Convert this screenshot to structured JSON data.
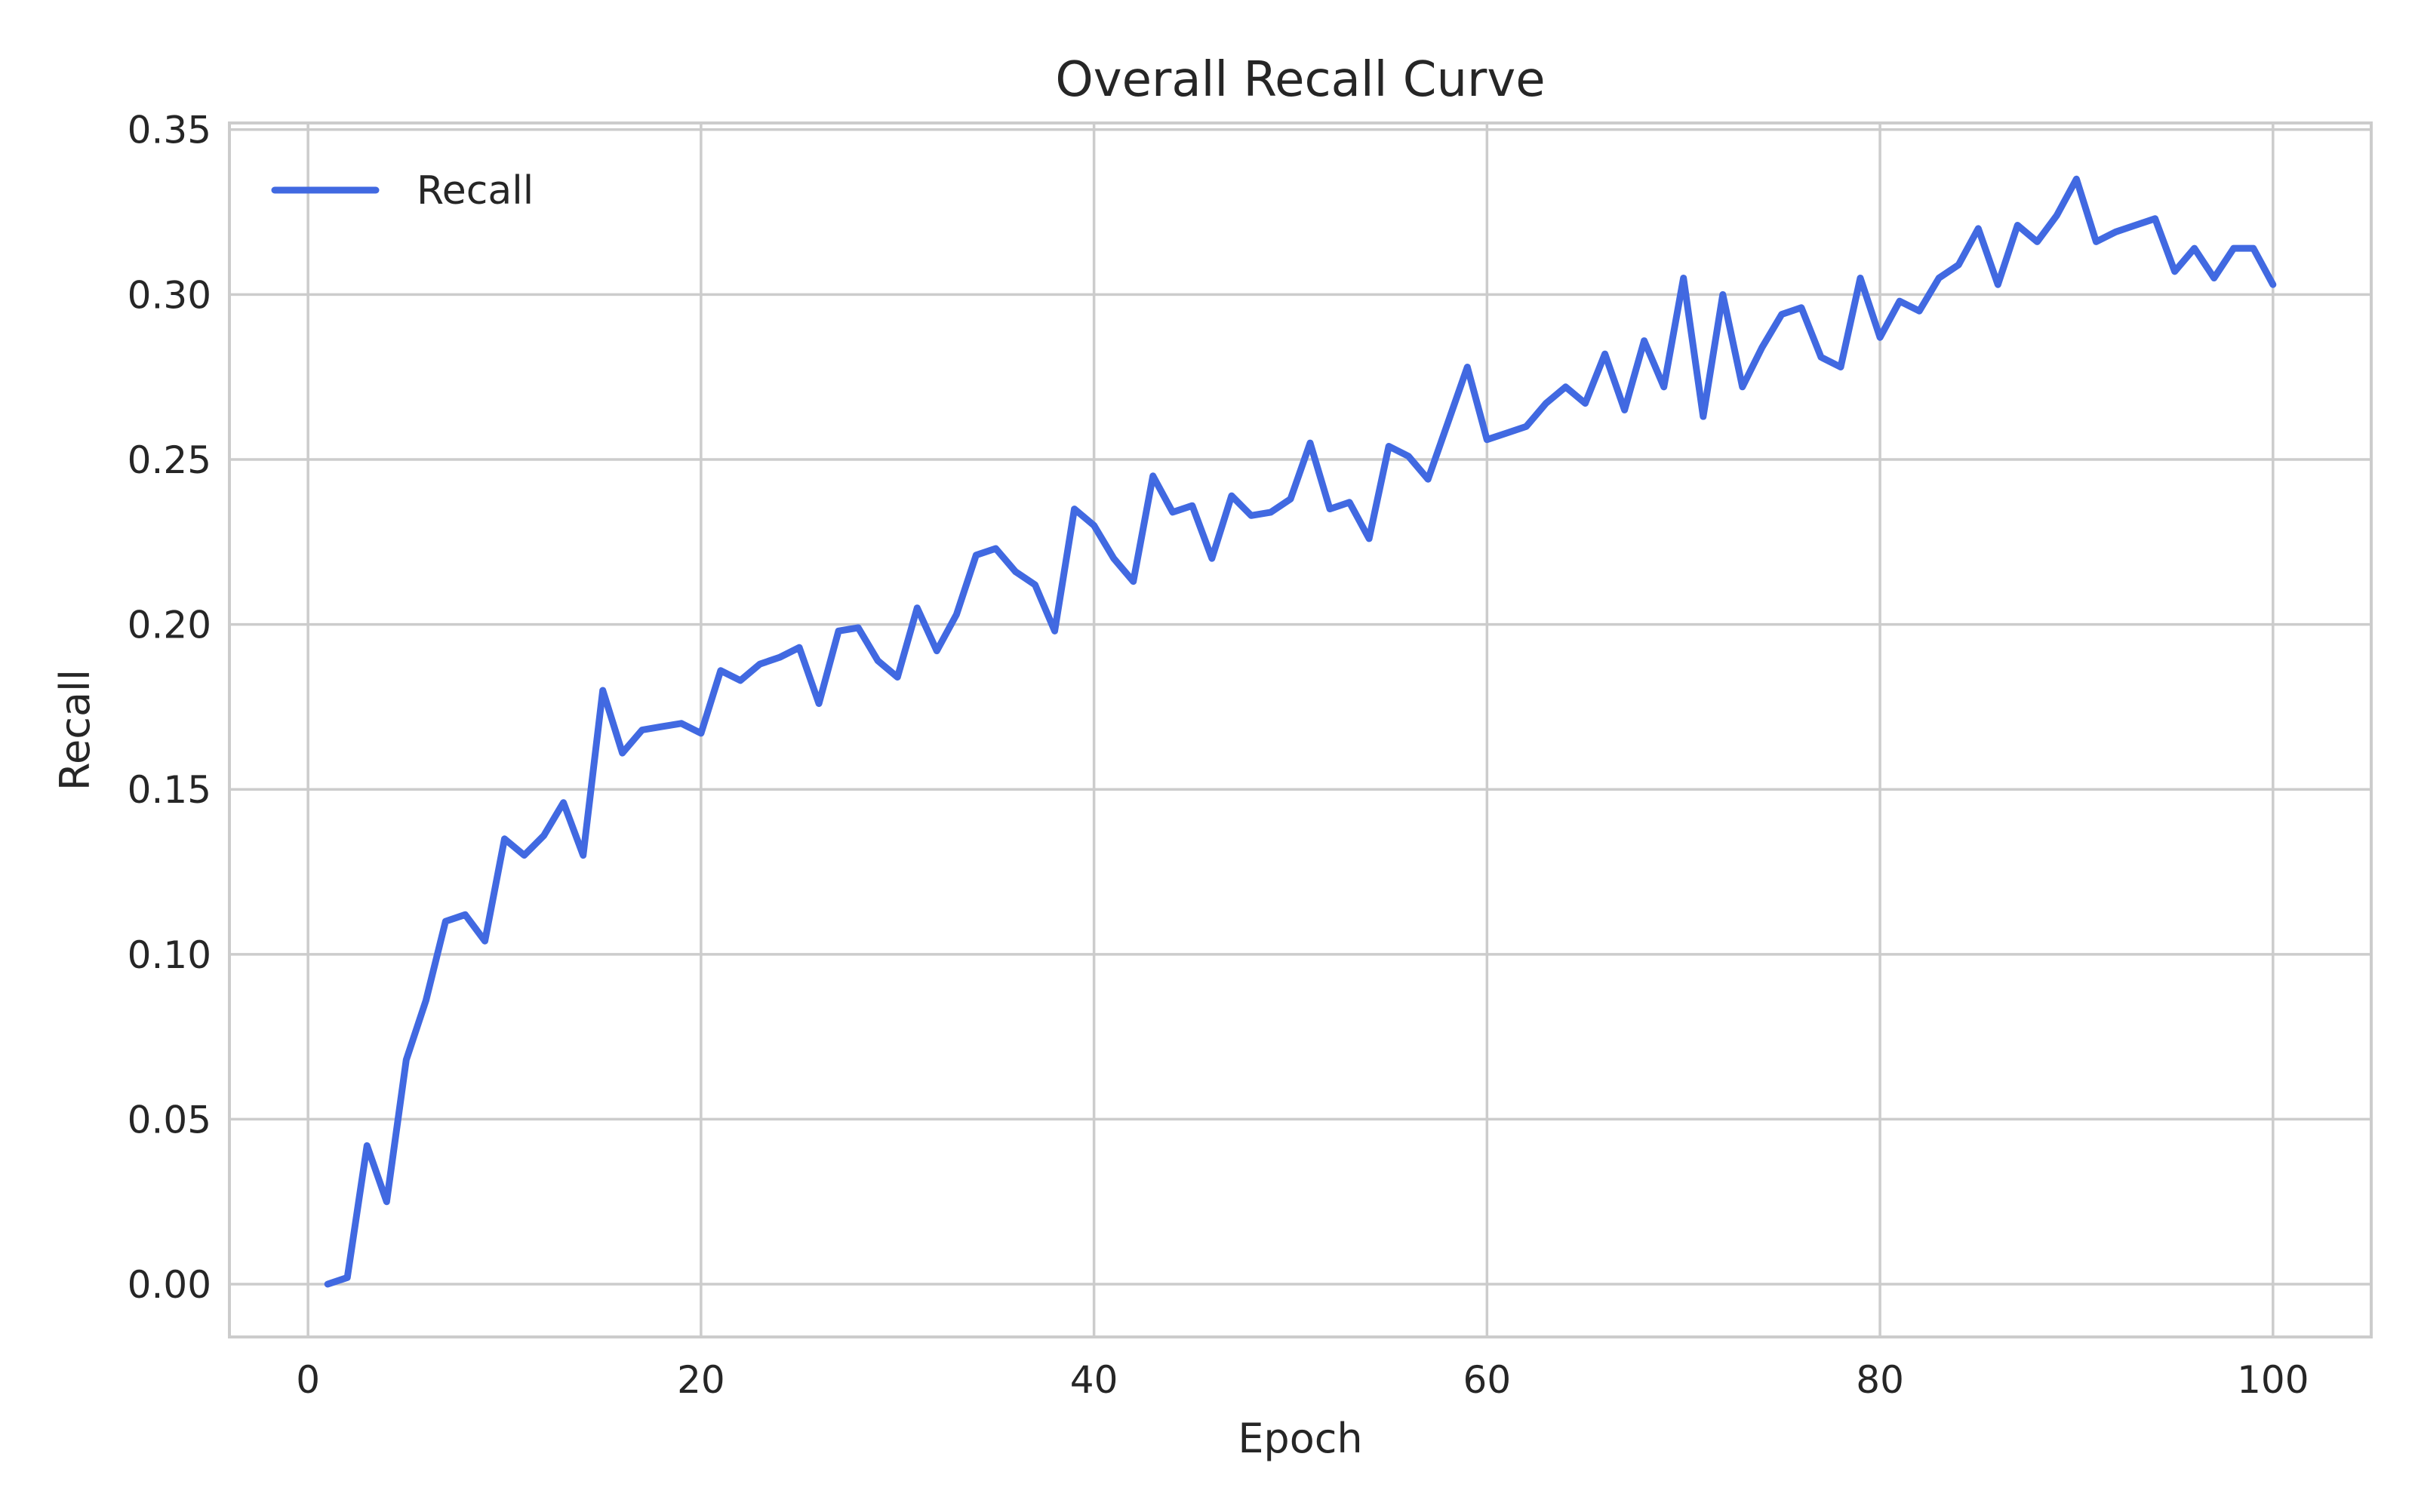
{
  "chart_data": {
    "type": "line",
    "title": "Overall Recall Curve",
    "xlabel": "Epoch",
    "ylabel": "Recall",
    "xlim": [
      -4,
      105
    ],
    "ylim": [
      -0.016,
      0.352
    ],
    "xticks": [
      0,
      20,
      40,
      60,
      80,
      100
    ],
    "yticks": [
      0.0,
      0.05,
      0.1,
      0.15,
      0.2,
      0.25,
      0.3,
      0.35
    ],
    "xtick_labels": [
      "0",
      "20",
      "40",
      "60",
      "80",
      "100"
    ],
    "ytick_labels": [
      "0.00",
      "0.05",
      "0.10",
      "0.15",
      "0.20",
      "0.25",
      "0.30",
      "0.35"
    ],
    "grid": true,
    "legend_position": "top-left",
    "series": [
      {
        "name": "Recall",
        "color": "#4169e1",
        "x": [
          1,
          2,
          3,
          4,
          5,
          6,
          7,
          8,
          9,
          10,
          11,
          12,
          13,
          14,
          15,
          16,
          17,
          18,
          19,
          20,
          21,
          22,
          23,
          24,
          25,
          26,
          27,
          28,
          29,
          30,
          31,
          32,
          33,
          34,
          35,
          36,
          37,
          38,
          39,
          40,
          41,
          42,
          43,
          44,
          45,
          46,
          47,
          48,
          49,
          50,
          51,
          52,
          53,
          54,
          55,
          56,
          57,
          58,
          59,
          60,
          61,
          62,
          63,
          64,
          65,
          66,
          67,
          68,
          69,
          70,
          71,
          72,
          73,
          74,
          75,
          76,
          77,
          78,
          79,
          80,
          81,
          82,
          83,
          84,
          85,
          86,
          87,
          88,
          89,
          90,
          91,
          92,
          93,
          94,
          95,
          96,
          97,
          98,
          99,
          100
        ],
        "values": [
          0.0,
          0.002,
          0.042,
          0.025,
          0.068,
          0.086,
          0.11,
          0.112,
          0.104,
          0.135,
          0.13,
          0.136,
          0.146,
          0.13,
          0.18,
          0.161,
          0.168,
          0.169,
          0.17,
          0.167,
          0.186,
          0.183,
          0.188,
          0.19,
          0.193,
          0.176,
          0.198,
          0.199,
          0.189,
          0.184,
          0.205,
          0.192,
          0.203,
          0.221,
          0.223,
          0.216,
          0.212,
          0.198,
          0.235,
          0.23,
          0.22,
          0.213,
          0.245,
          0.234,
          0.236,
          0.22,
          0.239,
          0.233,
          0.234,
          0.238,
          0.255,
          0.235,
          0.237,
          0.226,
          0.254,
          0.251,
          0.244,
          0.261,
          0.278,
          0.256,
          0.258,
          0.26,
          0.267,
          0.272,
          0.267,
          0.282,
          0.265,
          0.286,
          0.272,
          0.305,
          0.263,
          0.3,
          0.272,
          0.284,
          0.294,
          0.296,
          0.281,
          0.278,
          0.305,
          0.287,
          0.298,
          0.295,
          0.305,
          0.309,
          0.32,
          0.303,
          0.321,
          0.316,
          0.324,
          0.335,
          0.316,
          0.319,
          0.321,
          0.323,
          0.307,
          0.314,
          0.305,
          0.314,
          0.314,
          0.303
        ]
      }
    ]
  }
}
